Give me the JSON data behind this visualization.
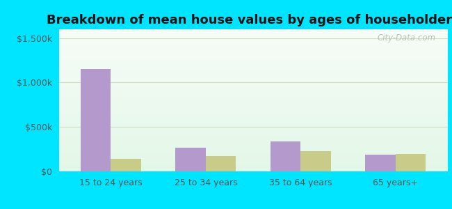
{
  "title": "Breakdown of mean house values by ages of householders",
  "categories": [
    "15 to 24 years",
    "25 to 34 years",
    "35 to 64 years",
    "65 years+"
  ],
  "gahanna_values": [
    1150000,
    270000,
    340000,
    190000
  ],
  "ohio_values": [
    145000,
    175000,
    230000,
    195000
  ],
  "gahanna_color": "#b399cc",
  "ohio_color": "#c8cc88",
  "ylim": [
    0,
    1600000
  ],
  "yticks": [
    0,
    500000,
    1000000,
    1500000
  ],
  "ytick_labels": [
    "$0",
    "$500k",
    "$1,000k",
    "$1,500k"
  ],
  "bar_width": 0.32,
  "background_outer": "#00e5ff",
  "grid_color": "#d0ddc0",
  "title_fontsize": 13,
  "axis_fontsize": 9,
  "legend_fontsize": 10,
  "watermark_text": "City-Data.com"
}
